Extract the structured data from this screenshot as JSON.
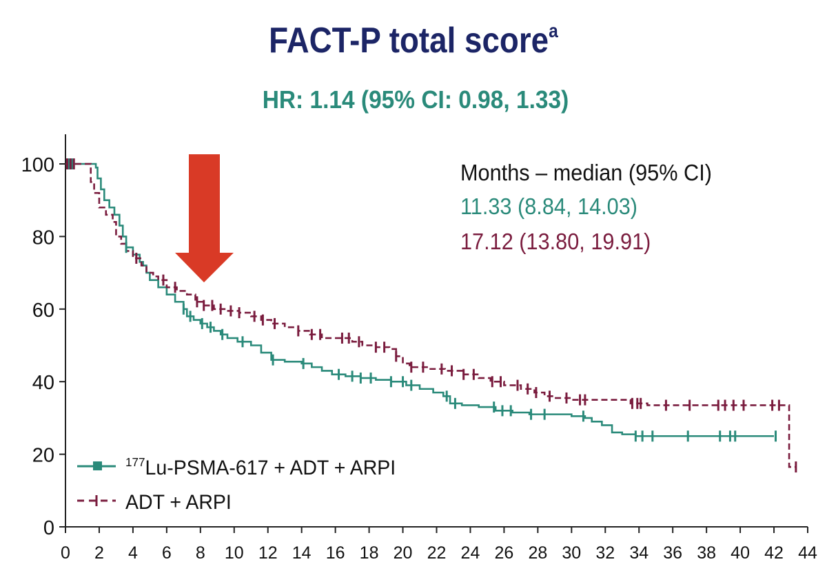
{
  "header": {
    "title": "FACT-P total score",
    "title_sup": "a",
    "hr_text": "HR: 1.14 (95% CI: 0.98, 1.33)"
  },
  "colors": {
    "title": "#1c2566",
    "teal": "#2a8a7a",
    "maroon": "#7a1c3e",
    "arrow": "#d93a26",
    "axis": "#222222"
  },
  "annotation": {
    "arrow_at_month": 8,
    "median_header": "Months – median (95% CI)",
    "medians": [
      "11.33 (8.84, 14.03)",
      "17.12 (13.80, 19.91)"
    ]
  },
  "chart_data": {
    "type": "line",
    "xlabel": "",
    "ylabel": "",
    "xlim": [
      0,
      44
    ],
    "ylim": [
      0,
      100
    ],
    "x_ticks": [
      "0",
      "2",
      "4",
      "6",
      "8",
      "10",
      "12",
      "14",
      "16",
      "18",
      "20",
      "22",
      "24",
      "26",
      "28",
      "30",
      "32",
      "34",
      "36",
      "38",
      "40",
      "42",
      "44"
    ],
    "y_ticks": [
      "0",
      "20",
      "40",
      "60",
      "80",
      "100"
    ],
    "legend_placement": "bottom-left",
    "series": [
      {
        "name_sup": "177",
        "name": "Lu-PSMA-617 + ADT + ARPI",
        "style": "solid",
        "color": "#2a8a7a",
        "points": [
          [
            0,
            100
          ],
          [
            0.3,
            100
          ],
          [
            1.2,
            100
          ],
          [
            1.8,
            99
          ],
          [
            1.9,
            96
          ],
          [
            2.1,
            93
          ],
          [
            2.3,
            90
          ],
          [
            2.6,
            88
          ],
          [
            2.9,
            86
          ],
          [
            3.2,
            83
          ],
          [
            3.4,
            80
          ],
          [
            3.6,
            77
          ],
          [
            4.0,
            75
          ],
          [
            4.4,
            73
          ],
          [
            4.6,
            72
          ],
          [
            4.8,
            70
          ],
          [
            5.0,
            68
          ],
          [
            5.5,
            66
          ],
          [
            6.0,
            64
          ],
          [
            6.5,
            62
          ],
          [
            7.0,
            60
          ],
          [
            7.2,
            58
          ],
          [
            7.6,
            57
          ],
          [
            8.0,
            56
          ],
          [
            8.4,
            55
          ],
          [
            8.8,
            54
          ],
          [
            9.2,
            53
          ],
          [
            9.6,
            52
          ],
          [
            10.2,
            51
          ],
          [
            11.0,
            50
          ],
          [
            11.6,
            48
          ],
          [
            12.2,
            46
          ],
          [
            13.0,
            45.5
          ],
          [
            14.0,
            45
          ],
          [
            14.6,
            44
          ],
          [
            15.2,
            43
          ],
          [
            15.8,
            42
          ],
          [
            16.6,
            41.5
          ],
          [
            17.5,
            41
          ],
          [
            18.4,
            40.5
          ],
          [
            19.3,
            40
          ],
          [
            20.2,
            39
          ],
          [
            21.0,
            38
          ],
          [
            21.8,
            37
          ],
          [
            22.4,
            36
          ],
          [
            22.8,
            34
          ],
          [
            23.5,
            33.5
          ],
          [
            24.5,
            33
          ],
          [
            25.5,
            32
          ],
          [
            26.5,
            31.5
          ],
          [
            27.5,
            31
          ],
          [
            28.8,
            31
          ],
          [
            30.0,
            30.5
          ],
          [
            30.8,
            30
          ],
          [
            31.2,
            29
          ],
          [
            31.8,
            28
          ],
          [
            32.4,
            26
          ],
          [
            33.0,
            25.5
          ],
          [
            33.8,
            25
          ],
          [
            34.5,
            25
          ],
          [
            37.0,
            25
          ],
          [
            40.0,
            25
          ],
          [
            42.0,
            25
          ]
        ]
      },
      {
        "name": "ADT + ARPI",
        "style": "dashed",
        "color": "#7a1c3e",
        "points": [
          [
            0,
            100
          ],
          [
            0.5,
            100
          ],
          [
            1.2,
            100
          ],
          [
            1.5,
            95
          ],
          [
            1.7,
            92
          ],
          [
            2.0,
            88
          ],
          [
            2.4,
            86
          ],
          [
            2.8,
            84
          ],
          [
            3.0,
            80
          ],
          [
            3.3,
            78
          ],
          [
            3.6,
            76
          ],
          [
            4.0,
            74
          ],
          [
            4.5,
            72
          ],
          [
            4.8,
            70
          ],
          [
            5.2,
            69
          ],
          [
            5.5,
            68
          ],
          [
            6.0,
            66
          ],
          [
            6.6,
            65
          ],
          [
            7.2,
            64
          ],
          [
            7.7,
            62
          ],
          [
            8.2,
            61
          ],
          [
            8.8,
            60
          ],
          [
            9.5,
            59.5
          ],
          [
            10.3,
            59
          ],
          [
            11.0,
            58
          ],
          [
            11.6,
            57
          ],
          [
            12.2,
            56
          ],
          [
            13.0,
            55
          ],
          [
            13.8,
            54
          ],
          [
            14.5,
            53
          ],
          [
            15.2,
            52
          ],
          [
            16.2,
            52
          ],
          [
            17.0,
            51
          ],
          [
            17.6,
            50
          ],
          [
            18.4,
            49.5
          ],
          [
            19.2,
            49
          ],
          [
            19.6,
            47
          ],
          [
            20.0,
            45
          ],
          [
            20.4,
            44
          ],
          [
            21.5,
            43.5
          ],
          [
            22.5,
            43
          ],
          [
            23.5,
            42
          ],
          [
            24.5,
            41
          ],
          [
            25.2,
            40
          ],
          [
            26.0,
            39
          ],
          [
            27.0,
            38
          ],
          [
            27.8,
            37
          ],
          [
            28.4,
            36
          ],
          [
            29.0,
            35.5
          ],
          [
            30.0,
            35
          ],
          [
            31.0,
            35
          ],
          [
            33.5,
            34
          ],
          [
            34.5,
            33.5
          ],
          [
            36.0,
            33.5
          ],
          [
            38.0,
            33.5
          ],
          [
            40.0,
            33.5
          ],
          [
            42.0,
            33.5
          ],
          [
            42.9,
            33.5
          ],
          [
            42.9,
            16.5
          ],
          [
            43.3,
            16.5
          ]
        ]
      }
    ],
    "censor_marks": {
      "teal": [
        0.2,
        0.4,
        3.6,
        7.0,
        7.4,
        8.1,
        8.6,
        9.3,
        10.5,
        12.3,
        14.1,
        16.2,
        17.0,
        17.5,
        18.1,
        19.3,
        20.0,
        20.5,
        22.6,
        23.1,
        25.4,
        25.9,
        26.4,
        27.6,
        28.4,
        30.7,
        33.8,
        34.2,
        34.8,
        36.9,
        38.8,
        39.4,
        39.7,
        42.1
      ],
      "maroon": [
        0.1,
        0.3,
        0.5,
        4.2,
        5.8,
        6.5,
        7.8,
        8.2,
        8.7,
        9.2,
        9.8,
        10.3,
        11.2,
        11.7,
        12.4,
        13.8,
        14.6,
        15.1,
        16.4,
        16.8,
        17.4,
        18.4,
        18.9,
        19.6,
        20.5,
        21.2,
        22.3,
        22.9,
        23.6,
        24.2,
        25.3,
        25.8,
        26.8,
        27.4,
        27.9,
        28.7,
        29.7,
        30.5,
        30.8,
        33.6,
        33.9,
        34.1,
        35.6,
        37.0,
        38.7,
        39.1,
        39.6,
        40.2,
        41.9,
        42.3,
        43.3
      ]
    }
  }
}
